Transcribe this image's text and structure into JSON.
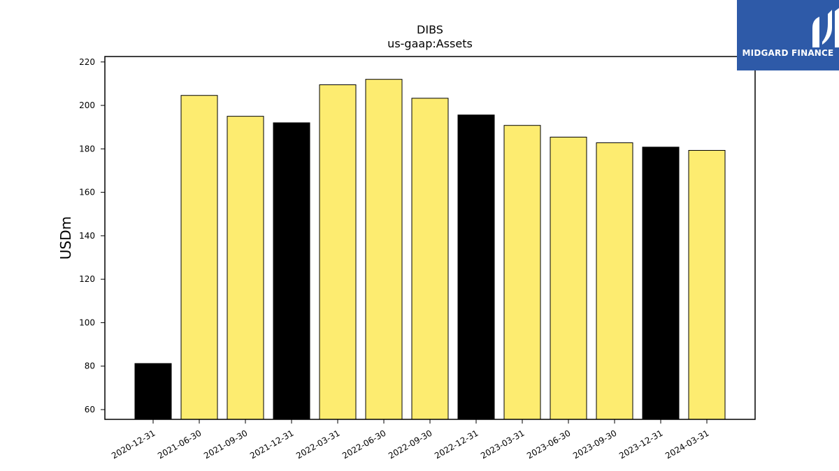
{
  "chart_data": {
    "type": "bar",
    "title": "DIBS",
    "subtitle": "us-gaap:Assets",
    "xlabel": "",
    "ylabel": "USDm",
    "ylim": [
      55.5,
      222.5
    ],
    "yticks": [
      60,
      80,
      100,
      120,
      140,
      160,
      180,
      200,
      220
    ],
    "grid": false,
    "categories": [
      "2020-12-31",
      "2021-06-30",
      "2021-09-30",
      "2021-12-31",
      "2022-03-31",
      "2022-06-30",
      "2022-09-30",
      "2022-12-31",
      "2023-03-31",
      "2023-06-30",
      "2023-09-30",
      "2023-12-31",
      "2024-03-31"
    ],
    "values": [
      81.2,
      204.6,
      195.0,
      192.0,
      209.5,
      212.0,
      203.3,
      195.6,
      190.8,
      185.4,
      182.8,
      180.8,
      179.3
    ],
    "bar_colors": [
      "#000000",
      "#fdec70",
      "#fdec70",
      "#000000",
      "#fdec70",
      "#fdec70",
      "#fdec70",
      "#000000",
      "#fdec70",
      "#fdec70",
      "#fdec70",
      "#000000",
      "#fdec70"
    ]
  },
  "logo": {
    "text": "MIDGARD FINANCE",
    "background": "#2e5aa8"
  }
}
